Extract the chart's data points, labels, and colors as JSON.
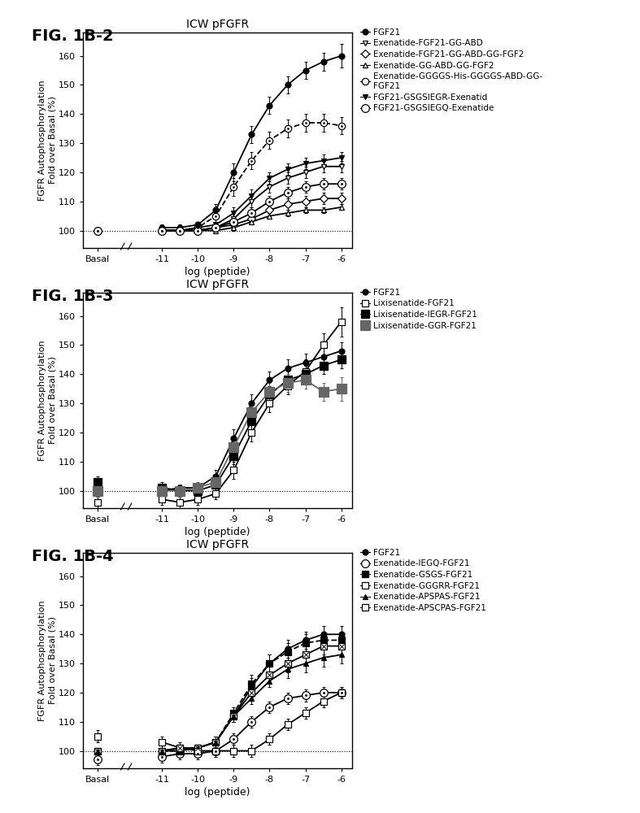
{
  "fig_width": 7.87,
  "fig_height": 10.0,
  "background_color": "#ffffff",
  "panels": [
    {
      "fig_label": "FIG. 1B-2",
      "title": "ICW pFGFR",
      "ylabel": "FGFR Autophosphorylation\nFold over Basal (%)",
      "xlabel": "log (peptide)",
      "ylim": [
        94,
        168
      ],
      "yticks": [
        100,
        110,
        120,
        130,
        140,
        150,
        160
      ],
      "series": [
        {
          "label": "FGF21",
          "marker": "o",
          "marker_size": 5,
          "fillstyle": "full",
          "color": "#000000",
          "linestyle": "-",
          "x": [
            -13,
            -11,
            -10.5,
            -10,
            -9.5,
            -9,
            -8.5,
            -8,
            -7.5,
            -7,
            -6.5,
            -6
          ],
          "y": [
            100,
            101,
            101,
            102,
            107,
            120,
            133,
            143,
            150,
            155,
            158,
            160
          ],
          "yerr": [
            1,
            1,
            1,
            1,
            2,
            3,
            3,
            3,
            3,
            3,
            3,
            4
          ]
        },
        {
          "label": "Exenatide-FGF21-GG-ABD",
          "marker": "v",
          "marker_size": 5,
          "fillstyle": "none",
          "color": "#000000",
          "linestyle": "-",
          "x": [
            -13,
            -11,
            -10.5,
            -10,
            -9.5,
            -9,
            -8.5,
            -8,
            -7.5,
            -7,
            -6.5,
            -6
          ],
          "y": [
            100,
            100,
            100,
            100,
            101,
            104,
            110,
            115,
            118,
            120,
            122,
            122
          ],
          "yerr": [
            1,
            1,
            1,
            1,
            1,
            2,
            2,
            2,
            2,
            2,
            2,
            2
          ]
        },
        {
          "label": "Exenatide-FGF21-GG-ABD-GG-FGF2",
          "marker": "D",
          "marker_size": 5,
          "fillstyle": "none",
          "color": "#000000",
          "linestyle": "-",
          "x": [
            -13,
            -11,
            -10.5,
            -10,
            -9.5,
            -9,
            -8.5,
            -8,
            -7.5,
            -7,
            -6.5,
            -6
          ],
          "y": [
            100,
            100,
            100,
            100,
            101,
            102,
            104,
            107,
            109,
            110,
            111,
            111
          ],
          "yerr": [
            1,
            1,
            1,
            1,
            1,
            1,
            2,
            2,
            2,
            2,
            2,
            2
          ]
        },
        {
          "label": "Exenatide-GG-ABD-GG-FGF2",
          "marker": "^",
          "marker_size": 5,
          "fillstyle": "none",
          "color": "#000000",
          "linestyle": "-",
          "x": [
            -13,
            -11,
            -10.5,
            -10,
            -9.5,
            -9,
            -8.5,
            -8,
            -7.5,
            -7,
            -6.5,
            -6
          ],
          "y": [
            100,
            100,
            100,
            100,
            100,
            101,
            103,
            105,
            106,
            107,
            107,
            108
          ],
          "yerr": [
            1,
            1,
            1,
            1,
            1,
            1,
            1,
            1,
            1,
            1,
            1,
            1
          ]
        },
        {
          "label": "Exenatide-GGGGS-His-GGGGS-ABD-GG-\nFGF21",
          "marker": "o",
          "marker_size": 6,
          "fillstyle": "none",
          "color": "#000000",
          "linestyle": "--",
          "inner_marker": true,
          "x": [
            -13,
            -11,
            -10.5,
            -10,
            -9.5,
            -9,
            -8.5,
            -8,
            -7.5,
            -7,
            -6.5,
            -6
          ],
          "y": [
            100,
            100,
            100,
            101,
            105,
            115,
            124,
            131,
            135,
            137,
            137,
            136
          ],
          "yerr": [
            1,
            1,
            1,
            2,
            3,
            3,
            3,
            3,
            3,
            3,
            3,
            3
          ]
        },
        {
          "label": "FGF21-GSGSIEGR-Exenatid",
          "marker": "v",
          "marker_size": 5,
          "fillstyle": "full",
          "color": "#000000",
          "linestyle": "-",
          "x": [
            -13,
            -11,
            -10.5,
            -10,
            -9.5,
            -9,
            -8.5,
            -8,
            -7.5,
            -7,
            -6.5,
            -6
          ],
          "y": [
            100,
            100,
            100,
            101,
            102,
            106,
            112,
            118,
            121,
            123,
            124,
            125
          ],
          "yerr": [
            1,
            1,
            1,
            1,
            2,
            2,
            2,
            2,
            2,
            2,
            2,
            2
          ]
        },
        {
          "label": "FGF21-GSGSIEGQ-Exenatide",
          "marker": "o",
          "marker_size": 7,
          "fillstyle": "none",
          "color": "#000000",
          "linestyle": "-",
          "inner_dot": true,
          "x": [
            -13,
            -11,
            -10.5,
            -10,
            -9.5,
            -9,
            -8.5,
            -8,
            -7.5,
            -7,
            -6.5,
            -6
          ],
          "y": [
            100,
            100,
            100,
            100,
            101,
            103,
            106,
            110,
            113,
            115,
            116,
            116
          ],
          "yerr": [
            1,
            1,
            1,
            1,
            1,
            2,
            2,
            2,
            2,
            2,
            2,
            2
          ]
        }
      ]
    },
    {
      "fig_label": "FIG. 1B-3",
      "title": "ICW pFGFR",
      "ylabel": "FGFR Autophosphorylation\nFold over Basal (%)",
      "xlabel": "log (peptide)",
      "ylim": [
        94,
        168
      ],
      "yticks": [
        100,
        110,
        120,
        130,
        140,
        150,
        160
      ],
      "series": [
        {
          "label": "FGF21",
          "marker": "o",
          "marker_size": 5,
          "fillstyle": "full",
          "color": "#000000",
          "linestyle": "-",
          "x": [
            -13,
            -11,
            -10.5,
            -10,
            -9.5,
            -9,
            -8.5,
            -8,
            -7.5,
            -7,
            -6.5,
            -6
          ],
          "y": [
            100,
            100,
            101,
            101,
            105,
            118,
            130,
            138,
            142,
            144,
            146,
            148
          ],
          "yerr": [
            1,
            1,
            1,
            1,
            2,
            3,
            3,
            3,
            3,
            3,
            3,
            3
          ]
        },
        {
          "label": "Lixisenatide-FGF21",
          "marker": "s",
          "marker_size": 6,
          "fillstyle": "none",
          "color": "#000000",
          "linestyle": "-",
          "x": [
            -13,
            -11,
            -10.5,
            -10,
            -9.5,
            -9,
            -8.5,
            -8,
            -7.5,
            -7,
            -6.5,
            -6
          ],
          "y": [
            96,
            97,
            96,
            97,
            99,
            107,
            120,
            130,
            136,
            141,
            150,
            158
          ],
          "yerr": [
            2,
            2,
            2,
            2,
            2,
            3,
            3,
            3,
            3,
            4,
            4,
            5
          ]
        },
        {
          "label": "Lixisenatide-IEGR-FGF21",
          "marker": "s",
          "marker_size": 7,
          "fillstyle": "full",
          "color": "#000000",
          "linestyle": "-",
          "x": [
            -13,
            -11,
            -10.5,
            -10,
            -9.5,
            -9,
            -8.5,
            -8,
            -7.5,
            -7,
            -6.5,
            -6
          ],
          "y": [
            103,
            101,
            100,
            100,
            102,
            112,
            124,
            133,
            138,
            140,
            143,
            145
          ],
          "yerr": [
            2,
            2,
            2,
            2,
            2,
            3,
            3,
            3,
            3,
            3,
            3,
            3
          ]
        },
        {
          "label": "Lixisenatide-GGR-FGF21",
          "marker": "s",
          "marker_size": 8,
          "fillstyle": "full",
          "color": "#666666",
          "linestyle": "-",
          "x": [
            -13,
            -11,
            -10.5,
            -10,
            -9.5,
            -9,
            -8.5,
            -8,
            -7.5,
            -7,
            -6.5,
            -6
          ],
          "y": [
            100,
            100,
            100,
            101,
            103,
            115,
            127,
            134,
            137,
            138,
            134,
            135
          ],
          "yerr": [
            2,
            2,
            2,
            2,
            2,
            3,
            3,
            3,
            3,
            3,
            3,
            4
          ]
        }
      ]
    },
    {
      "fig_label": "FIG. 1B-4",
      "title": "ICW pFGFR",
      "ylabel": "FGFR Autophosphorylation\nFold over Basal (%)",
      "xlabel": "log (peptide)",
      "ylim": [
        94,
        168
      ],
      "yticks": [
        100,
        110,
        120,
        130,
        140,
        150,
        160
      ],
      "series": [
        {
          "label": "FGF21",
          "marker": "o",
          "marker_size": 5,
          "fillstyle": "full",
          "color": "#000000",
          "linestyle": "-",
          "x": [
            -13,
            -11,
            -10.5,
            -10,
            -9.5,
            -9,
            -8.5,
            -8,
            -7.5,
            -7,
            -6.5,
            -6
          ],
          "y": [
            100,
            100,
            101,
            101,
            103,
            112,
            122,
            130,
            135,
            138,
            140,
            140
          ],
          "yerr": [
            1,
            1,
            1,
            1,
            2,
            2,
            3,
            3,
            3,
            3,
            3,
            3
          ]
        },
        {
          "label": "Exenatide-IEGQ-FGF21",
          "marker": "o",
          "marker_size": 7,
          "fillstyle": "none",
          "color": "#000000",
          "linestyle": "-",
          "inner_dot": true,
          "x": [
            -13,
            -11,
            -10.5,
            -10,
            -9.5,
            -9,
            -8.5,
            -8,
            -7.5,
            -7,
            -6.5,
            -6
          ],
          "y": [
            97,
            98,
            99,
            99,
            100,
            104,
            110,
            115,
            118,
            119,
            120,
            120
          ],
          "yerr": [
            2,
            2,
            2,
            2,
            2,
            2,
            2,
            2,
            2,
            2,
            2,
            2
          ]
        },
        {
          "label": "Exenatide-GSGS-FGF21",
          "marker": "s",
          "marker_size": 6,
          "fillstyle": "full",
          "color": "#000000",
          "linestyle": "--",
          "x": [
            -13,
            -11,
            -10.5,
            -10,
            -9.5,
            -9,
            -8.5,
            -8,
            -7.5,
            -7,
            -6.5,
            -6
          ],
          "y": [
            100,
            100,
            100,
            101,
            103,
            113,
            123,
            130,
            134,
            137,
            138,
            138
          ],
          "yerr": [
            1,
            1,
            1,
            1,
            2,
            2,
            3,
            3,
            3,
            3,
            3,
            3
          ]
        },
        {
          "label": "Exenatide-GGGRR-FGF21",
          "marker": "s",
          "marker_size": 6,
          "fillstyle": "none",
          "color": "#000000",
          "linestyle": "-",
          "inner_x": true,
          "x": [
            -13,
            -11,
            -10.5,
            -10,
            -9.5,
            -9,
            -8.5,
            -8,
            -7.5,
            -7,
            -6.5,
            -6
          ],
          "y": [
            100,
            100,
            101,
            101,
            103,
            112,
            120,
            126,
            130,
            133,
            136,
            136
          ],
          "yerr": [
            1,
            1,
            1,
            1,
            2,
            2,
            2,
            3,
            3,
            3,
            3,
            3
          ]
        },
        {
          "label": "Exenatide-APSPAS-FGF21",
          "marker": "^",
          "marker_size": 5,
          "fillstyle": "full",
          "color": "#000000",
          "linestyle": "-",
          "x": [
            -13,
            -11,
            -10.5,
            -10,
            -9.5,
            -9,
            -8.5,
            -8,
            -7.5,
            -7,
            -6.5,
            -6
          ],
          "y": [
            100,
            100,
            100,
            101,
            103,
            112,
            118,
            124,
            128,
            130,
            132,
            133
          ],
          "yerr": [
            1,
            1,
            1,
            1,
            2,
            2,
            2,
            2,
            3,
            3,
            3,
            3
          ]
        },
        {
          "label": "Exenatide-APSCPAS-FGF21",
          "marker": "s",
          "marker_size": 6,
          "fillstyle": "none",
          "color": "#000000",
          "linestyle": "-",
          "x": [
            -13,
            -11,
            -10.5,
            -10,
            -9.5,
            -9,
            -8.5,
            -8,
            -7.5,
            -7,
            -6.5,
            -6
          ],
          "y": [
            105,
            103,
            101,
            100,
            100,
            100,
            100,
            104,
            109,
            113,
            117,
            120
          ],
          "yerr": [
            2,
            2,
            2,
            2,
            2,
            2,
            2,
            2,
            2,
            2,
            2,
            2
          ]
        }
      ]
    }
  ]
}
